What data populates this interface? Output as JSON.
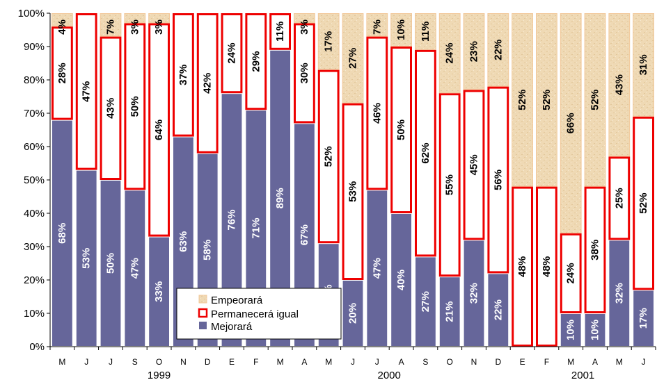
{
  "colors": {
    "mejorara": "#66669A",
    "permanecera": "#FFFFFF",
    "permanecera_border": "#EE0000",
    "empeorara": "#EFD9B4",
    "empeorara_border": "#F2C89A"
  },
  "chart_data": {
    "type": "bar",
    "stacked": true,
    "percent_axis": true,
    "ylim": [
      0,
      100
    ],
    "yticks": [
      "0%",
      "10%",
      "20%",
      "30%",
      "40%",
      "50%",
      "60%",
      "70%",
      "80%",
      "90%",
      "100%"
    ],
    "categories": [
      "M",
      "J",
      "J",
      "S",
      "O",
      "N",
      "D",
      "E",
      "F",
      "M",
      "A",
      "M",
      "J",
      "J",
      "A",
      "S",
      "O",
      "N",
      "D",
      "E",
      "F",
      "M",
      "A",
      "M",
      "J"
    ],
    "years": [
      {
        "label": "1999",
        "first": 0,
        "last": 8
      },
      {
        "label": "2000",
        "first": 9,
        "last": 18
      },
      {
        "label": "2001",
        "first": 19,
        "last": 24
      }
    ],
    "series": [
      {
        "name": "Mejorará",
        "key": "mejorara",
        "values": [
          68,
          53,
          50,
          47,
          33,
          63,
          58,
          76,
          71,
          89,
          67,
          31,
          20,
          47,
          40,
          27,
          21,
          32,
          22,
          0,
          0,
          10,
          10,
          32,
          17
        ],
        "labels": [
          "68%",
          "53%",
          "50%",
          "47%",
          "33%",
          "63%",
          "58%",
          "76%",
          "71%",
          "89%",
          "67%",
          "31%",
          "20%",
          "47%",
          "40%",
          "27%",
          "21%",
          "32%",
          "22%",
          "",
          "",
          "10%",
          "10%",
          "32%",
          "17%"
        ]
      },
      {
        "name": "Permanecerá igual",
        "key": "permanecera",
        "values": [
          28,
          47,
          43,
          50,
          64,
          37,
          42,
          24,
          29,
          11,
          30,
          52,
          53,
          46,
          50,
          62,
          55,
          45,
          56,
          48,
          48,
          24,
          38,
          25,
          52
        ],
        "labels": [
          "28%",
          "47%",
          "43%",
          "50%",
          "64%",
          "37%",
          "42%",
          "24%",
          "29%",
          "11%",
          "30%",
          "52%",
          "53%",
          "46%",
          "50%",
          "62%",
          "55%",
          "45%",
          "56%",
          "48%",
          "48%",
          "24%",
          "38%",
          "25%",
          "52%"
        ]
      },
      {
        "name": "Empeorará",
        "key": "empeorara",
        "values": [
          4,
          0,
          7,
          3,
          3,
          0,
          0,
          0,
          0,
          0,
          3,
          17,
          27,
          7,
          10,
          11,
          24,
          23,
          22,
          52,
          52,
          66,
          52,
          43,
          31
        ],
        "labels": [
          "4%",
          "",
          "7%",
          "3%",
          "3%",
          "",
          "",
          "",
          "",
          "",
          "3%",
          "17%",
          "27%",
          "7%",
          "10%",
          "11%",
          "24%",
          "23%",
          "22%",
          "52%",
          "52%",
          "66%",
          "52%",
          "43%",
          "31%"
        ]
      }
    ],
    "legend": {
      "position": "bottom-left-inside",
      "entries": [
        "Empeorará",
        "Permanecerá igual",
        "Mejorará"
      ]
    }
  }
}
